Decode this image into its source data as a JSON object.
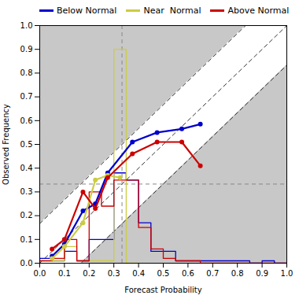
{
  "chart_data": {
    "type": "line",
    "title": "",
    "xlabel": "Forecast Probability",
    "ylabel": "Observed Frequency",
    "xlim": [
      0.0,
      1.0
    ],
    "ylim": [
      0.0,
      1.0
    ],
    "xticks": [
      {
        "value": 0.0,
        "label": "0.0"
      },
      0.1,
      0.2,
      0.3,
      0.4,
      0.5,
      0.6,
      0.7,
      0.8,
      0.9,
      {
        "value": 1.0,
        "label": "1.0"
      }
    ],
    "yticks": [
      {
        "value": 0.0,
        "label": "0.0"
      },
      0.1,
      0.2,
      0.3,
      0.4,
      0.5,
      0.6,
      0.7,
      0.8,
      0.9,
      {
        "value": 1.0,
        "label": "1.0"
      }
    ],
    "grid": false,
    "legend": "upper left",
    "marker": "circle",
    "clim_x": 0.333,
    "clim_y": 0.333,
    "band_offset": 0.16666666666666666,
    "band_color": "#c8c8c8",
    "series": [
      {
        "name": "Below Normal",
        "color": "#0000CC",
        "x": [
          0.05,
          0.1,
          0.175,
          0.225,
          0.275,
          0.375,
          0.475,
          0.575,
          0.65
        ],
        "values": [
          0.03,
          0.08,
          0.22,
          0.25,
          0.38,
          0.51,
          0.55,
          0.565,
          0.585
        ],
        "hist_bins": [
          0.0,
          0.05,
          0.1,
          0.15,
          0.2,
          0.25,
          0.3,
          0.35,
          0.4,
          0.45,
          0.5,
          0.55,
          0.6,
          0.65,
          0.7,
          0.75,
          0.8,
          0.85,
          0.9,
          0.95,
          1.0
        ],
        "hist_values": [
          0.02,
          0.01,
          0.05,
          0.01,
          0.1,
          0.1,
          0.38,
          0.35,
          0.17,
          0.05,
          0.05,
          0.01,
          0.01,
          0.01,
          0.01,
          0.01,
          0.01,
          0.0,
          0.01,
          0.0
        ]
      },
      {
        "name": "Near  Normal",
        "color": "#CCCC44",
        "x": [
          0.05,
          0.1,
          0.175,
          0.225,
          0.275,
          0.325
        ],
        "values": [
          0.02,
          0.07,
          0.17,
          0.35,
          0.37,
          0.36
        ],
        "hist_bins": [
          0.0,
          0.05,
          0.1,
          0.15,
          0.2,
          0.25,
          0.3,
          0.35,
          0.4
        ],
        "hist_values": [
          0.01,
          0.01,
          0.07,
          0.01,
          0.01,
          0.01,
          0.9,
          0.0
        ]
      },
      {
        "name": "Above Normal",
        "color": "#CC0000",
        "x": [
          0.05,
          0.1,
          0.175,
          0.225,
          0.275,
          0.375,
          0.475,
          0.575,
          0.65
        ],
        "values": [
          0.06,
          0.1,
          0.3,
          0.23,
          0.36,
          0.46,
          0.51,
          0.51,
          0.41
        ],
        "hist_bins": [
          0.0,
          0.05,
          0.1,
          0.15,
          0.2,
          0.25,
          0.3,
          0.35,
          0.4,
          0.45,
          0.5,
          0.55,
          0.6,
          0.65,
          0.7,
          0.75,
          0.8,
          0.85,
          0.9,
          0.95,
          1.0
        ],
        "hist_values": [
          0.01,
          0.02,
          0.1,
          0.01,
          0.3,
          0.24,
          0.35,
          0.35,
          0.15,
          0.06,
          0.02,
          0.01,
          0.01,
          0.0,
          0.0,
          0.0,
          0.0,
          0.0,
          0.0,
          0.0
        ]
      }
    ]
  }
}
